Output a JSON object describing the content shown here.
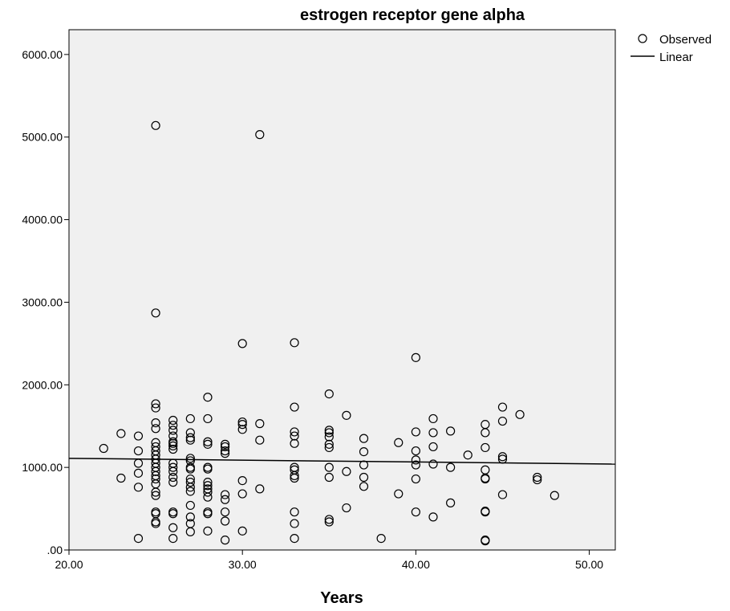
{
  "chart_data": {
    "type": "scatter",
    "title": "estrogen receptor gene alpha",
    "xlabel": "Years",
    "ylabel": "",
    "xlim": [
      20,
      51.5
    ],
    "ylim": [
      0,
      6300
    ],
    "x_ticks": [
      20,
      30,
      40,
      50
    ],
    "x_tick_labels": [
      "20.00",
      "30.00",
      "40.00",
      "50.00"
    ],
    "y_ticks": [
      0,
      1000,
      2000,
      3000,
      4000,
      5000,
      6000
    ],
    "y_tick_labels": [
      ".00",
      "1000.00",
      "2000.00",
      "3000.00",
      "4000.00",
      "5000.00",
      "6000.00"
    ],
    "grid": false,
    "legend": {
      "placement": "top-right",
      "entries": [
        "Observed",
        "Linear"
      ]
    },
    "colors": {
      "plot_background": "#f0f0f0",
      "marker": "#000000",
      "line": "#000000"
    },
    "series": [
      {
        "name": "Observed",
        "type": "scatter",
        "marker": "open-circle",
        "points": [
          [
            22,
            1230
          ],
          [
            23,
            1410
          ],
          [
            23,
            870
          ],
          [
            24,
            1380
          ],
          [
            24,
            1200
          ],
          [
            24,
            1050
          ],
          [
            24,
            930
          ],
          [
            24,
            760
          ],
          [
            24,
            140
          ],
          [
            25,
            5140
          ],
          [
            25,
            2870
          ],
          [
            25,
            1770
          ],
          [
            25,
            1720
          ],
          [
            25,
            1540
          ],
          [
            25,
            1470
          ],
          [
            25,
            1300
          ],
          [
            25,
            1250
          ],
          [
            25,
            1200
          ],
          [
            25,
            1150
          ],
          [
            25,
            1100
          ],
          [
            25,
            1050
          ],
          [
            25,
            1000
          ],
          [
            25,
            950
          ],
          [
            25,
            900
          ],
          [
            25,
            860
          ],
          [
            25,
            800
          ],
          [
            25,
            700
          ],
          [
            25,
            660
          ],
          [
            25,
            460
          ],
          [
            25,
            440
          ],
          [
            25,
            340
          ],
          [
            25,
            320
          ],
          [
            26,
            1570
          ],
          [
            26,
            1510
          ],
          [
            26,
            1450
          ],
          [
            26,
            1380
          ],
          [
            26,
            1310
          ],
          [
            26,
            1290
          ],
          [
            26,
            1260
          ],
          [
            26,
            1220
          ],
          [
            26,
            1050
          ],
          [
            26,
            1000
          ],
          [
            26,
            950
          ],
          [
            26,
            880
          ],
          [
            26,
            820
          ],
          [
            26,
            460
          ],
          [
            26,
            440
          ],
          [
            26,
            270
          ],
          [
            26,
            140
          ],
          [
            27,
            1590
          ],
          [
            27,
            1420
          ],
          [
            27,
            1360
          ],
          [
            27,
            1330
          ],
          [
            27,
            1110
          ],
          [
            27,
            1080
          ],
          [
            27,
            1000
          ],
          [
            27,
            980
          ],
          [
            27,
            860
          ],
          [
            27,
            820
          ],
          [
            27,
            760
          ],
          [
            27,
            710
          ],
          [
            27,
            540
          ],
          [
            27,
            400
          ],
          [
            27,
            320
          ],
          [
            27,
            220
          ],
          [
            28,
            1850
          ],
          [
            28,
            1590
          ],
          [
            28,
            1310
          ],
          [
            28,
            1280
          ],
          [
            28,
            1000
          ],
          [
            28,
            980
          ],
          [
            28,
            820
          ],
          [
            28,
            780
          ],
          [
            28,
            740
          ],
          [
            28,
            700
          ],
          [
            28,
            640
          ],
          [
            28,
            460
          ],
          [
            28,
            440
          ],
          [
            28,
            230
          ],
          [
            29,
            1280
          ],
          [
            29,
            1250
          ],
          [
            29,
            1200
          ],
          [
            29,
            1170
          ],
          [
            29,
            670
          ],
          [
            29,
            610
          ],
          [
            29,
            460
          ],
          [
            29,
            350
          ],
          [
            29,
            120
          ],
          [
            30,
            2500
          ],
          [
            30,
            1550
          ],
          [
            30,
            1520
          ],
          [
            30,
            1460
          ],
          [
            30,
            840
          ],
          [
            30,
            680
          ],
          [
            30,
            230
          ],
          [
            31,
            5030
          ],
          [
            31,
            1530
          ],
          [
            31,
            1330
          ],
          [
            31,
            740
          ],
          [
            33,
            2510
          ],
          [
            33,
            1730
          ],
          [
            33,
            1430
          ],
          [
            33,
            1380
          ],
          [
            33,
            1290
          ],
          [
            33,
            1000
          ],
          [
            33,
            970
          ],
          [
            33,
            900
          ],
          [
            33,
            870
          ],
          [
            33,
            460
          ],
          [
            33,
            320
          ],
          [
            33,
            140
          ],
          [
            35,
            1890
          ],
          [
            35,
            1450
          ],
          [
            35,
            1420
          ],
          [
            35,
            1370
          ],
          [
            35,
            1280
          ],
          [
            35,
            1240
          ],
          [
            35,
            1000
          ],
          [
            35,
            880
          ],
          [
            35,
            370
          ],
          [
            35,
            340
          ],
          [
            36,
            1630
          ],
          [
            36,
            950
          ],
          [
            36,
            510
          ],
          [
            37,
            1350
          ],
          [
            37,
            1190
          ],
          [
            37,
            1030
          ],
          [
            37,
            880
          ],
          [
            37,
            770
          ],
          [
            38,
            140
          ],
          [
            39,
            1300
          ],
          [
            39,
            680
          ],
          [
            40,
            2330
          ],
          [
            40,
            1430
          ],
          [
            40,
            1200
          ],
          [
            40,
            1090
          ],
          [
            40,
            1030
          ],
          [
            40,
            860
          ],
          [
            40,
            460
          ],
          [
            41,
            1590
          ],
          [
            41,
            1420
          ],
          [
            41,
            1250
          ],
          [
            41,
            1040
          ],
          [
            41,
            400
          ],
          [
            42,
            1440
          ],
          [
            42,
            1000
          ],
          [
            42,
            570
          ],
          [
            43,
            1150
          ],
          [
            44,
            1520
          ],
          [
            44,
            1420
          ],
          [
            44,
            1240
          ],
          [
            44,
            970
          ],
          [
            44,
            870
          ],
          [
            44,
            860
          ],
          [
            44,
            470
          ],
          [
            44,
            460
          ],
          [
            44,
            120
          ],
          [
            44,
            110
          ],
          [
            45,
            1730
          ],
          [
            45,
            1560
          ],
          [
            45,
            1130
          ],
          [
            45,
            1100
          ],
          [
            45,
            670
          ],
          [
            46,
            1640
          ],
          [
            47,
            880
          ],
          [
            47,
            850
          ],
          [
            48,
            660
          ]
        ]
      },
      {
        "name": "Linear",
        "type": "line",
        "points": [
          [
            20,
            1110
          ],
          [
            51.5,
            1040
          ]
        ]
      }
    ]
  }
}
